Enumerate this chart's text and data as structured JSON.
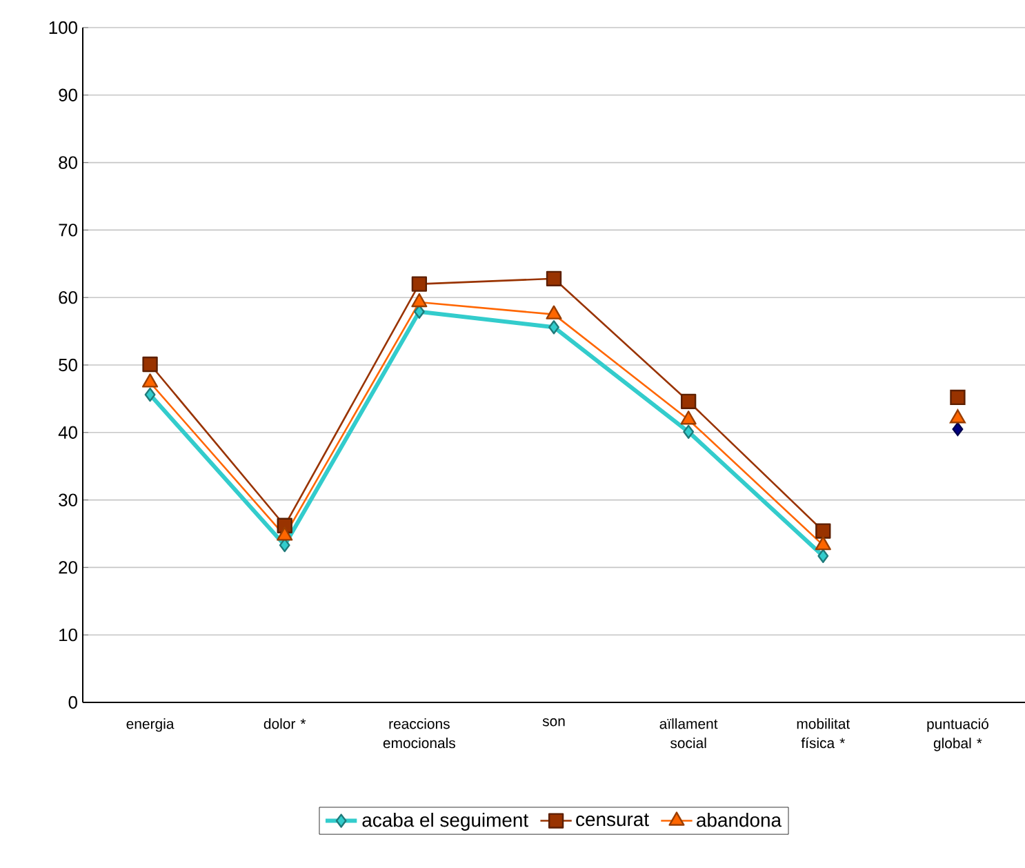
{
  "chart_data": {
    "type": "line",
    "categories": [
      "energia",
      "dolor *",
      "reaccions emocionals",
      "son",
      "aïllament social",
      "mobilitat física *",
      "puntuació global *"
    ],
    "series": [
      {
        "name": "acaba el seguiment",
        "color": "#33cccc",
        "marker": "diamond",
        "values": [
          45.6,
          23.3,
          57.9,
          55.6,
          40.1,
          21.7,
          null
        ]
      },
      {
        "name": "censurat",
        "color": "#993300",
        "marker": "square",
        "values": [
          50.1,
          26.2,
          62.0,
          62.8,
          44.6,
          25.4,
          null
        ]
      },
      {
        "name": "abandona",
        "color": "#ff6600",
        "marker": "triangle",
        "values": [
          47.4,
          24.7,
          59.3,
          57.5,
          41.9,
          23.3,
          null
        ]
      },
      {
        "type": "scatter",
        "color": "#000080",
        "marker": "diamond",
        "values": [
          null,
          null,
          null,
          null,
          null,
          null,
          40.5
        ]
      },
      {
        "type": "scatter",
        "color": "#993300",
        "marker": "square",
        "values": [
          null,
          null,
          null,
          null,
          null,
          null,
          45.2
        ]
      },
      {
        "type": "scatter",
        "color": "#ff6600",
        "marker": "triangle",
        "values": [
          null,
          null,
          null,
          null,
          null,
          null,
          42.1
        ]
      }
    ],
    "ylim": [
      0,
      100
    ],
    "yticks": [
      0,
      10,
      20,
      30,
      40,
      50,
      60,
      70,
      80,
      90,
      100
    ],
    "grid": "y",
    "legend": "bottom"
  }
}
